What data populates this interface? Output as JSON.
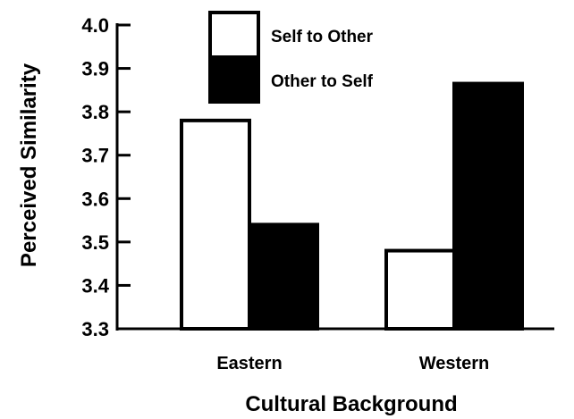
{
  "chart_data": {
    "type": "bar",
    "title": "",
    "xlabel": "Cultural Background",
    "ylabel": "Perceived Similarity",
    "categories": [
      "Eastern",
      "Western"
    ],
    "series": [
      {
        "name": "Self to Other",
        "values": [
          3.78,
          3.48
        ],
        "color": "#ffffff"
      },
      {
        "name": "Other to Self",
        "values": [
          3.54,
          3.865
        ],
        "color": "#000000"
      }
    ],
    "ylim": [
      3.3,
      4.0
    ],
    "yticks": [
      "3.3",
      "3.4",
      "3.5",
      "3.6",
      "3.7",
      "3.8",
      "3.9",
      "4.0"
    ],
    "grid": false,
    "legend": "top-center"
  }
}
